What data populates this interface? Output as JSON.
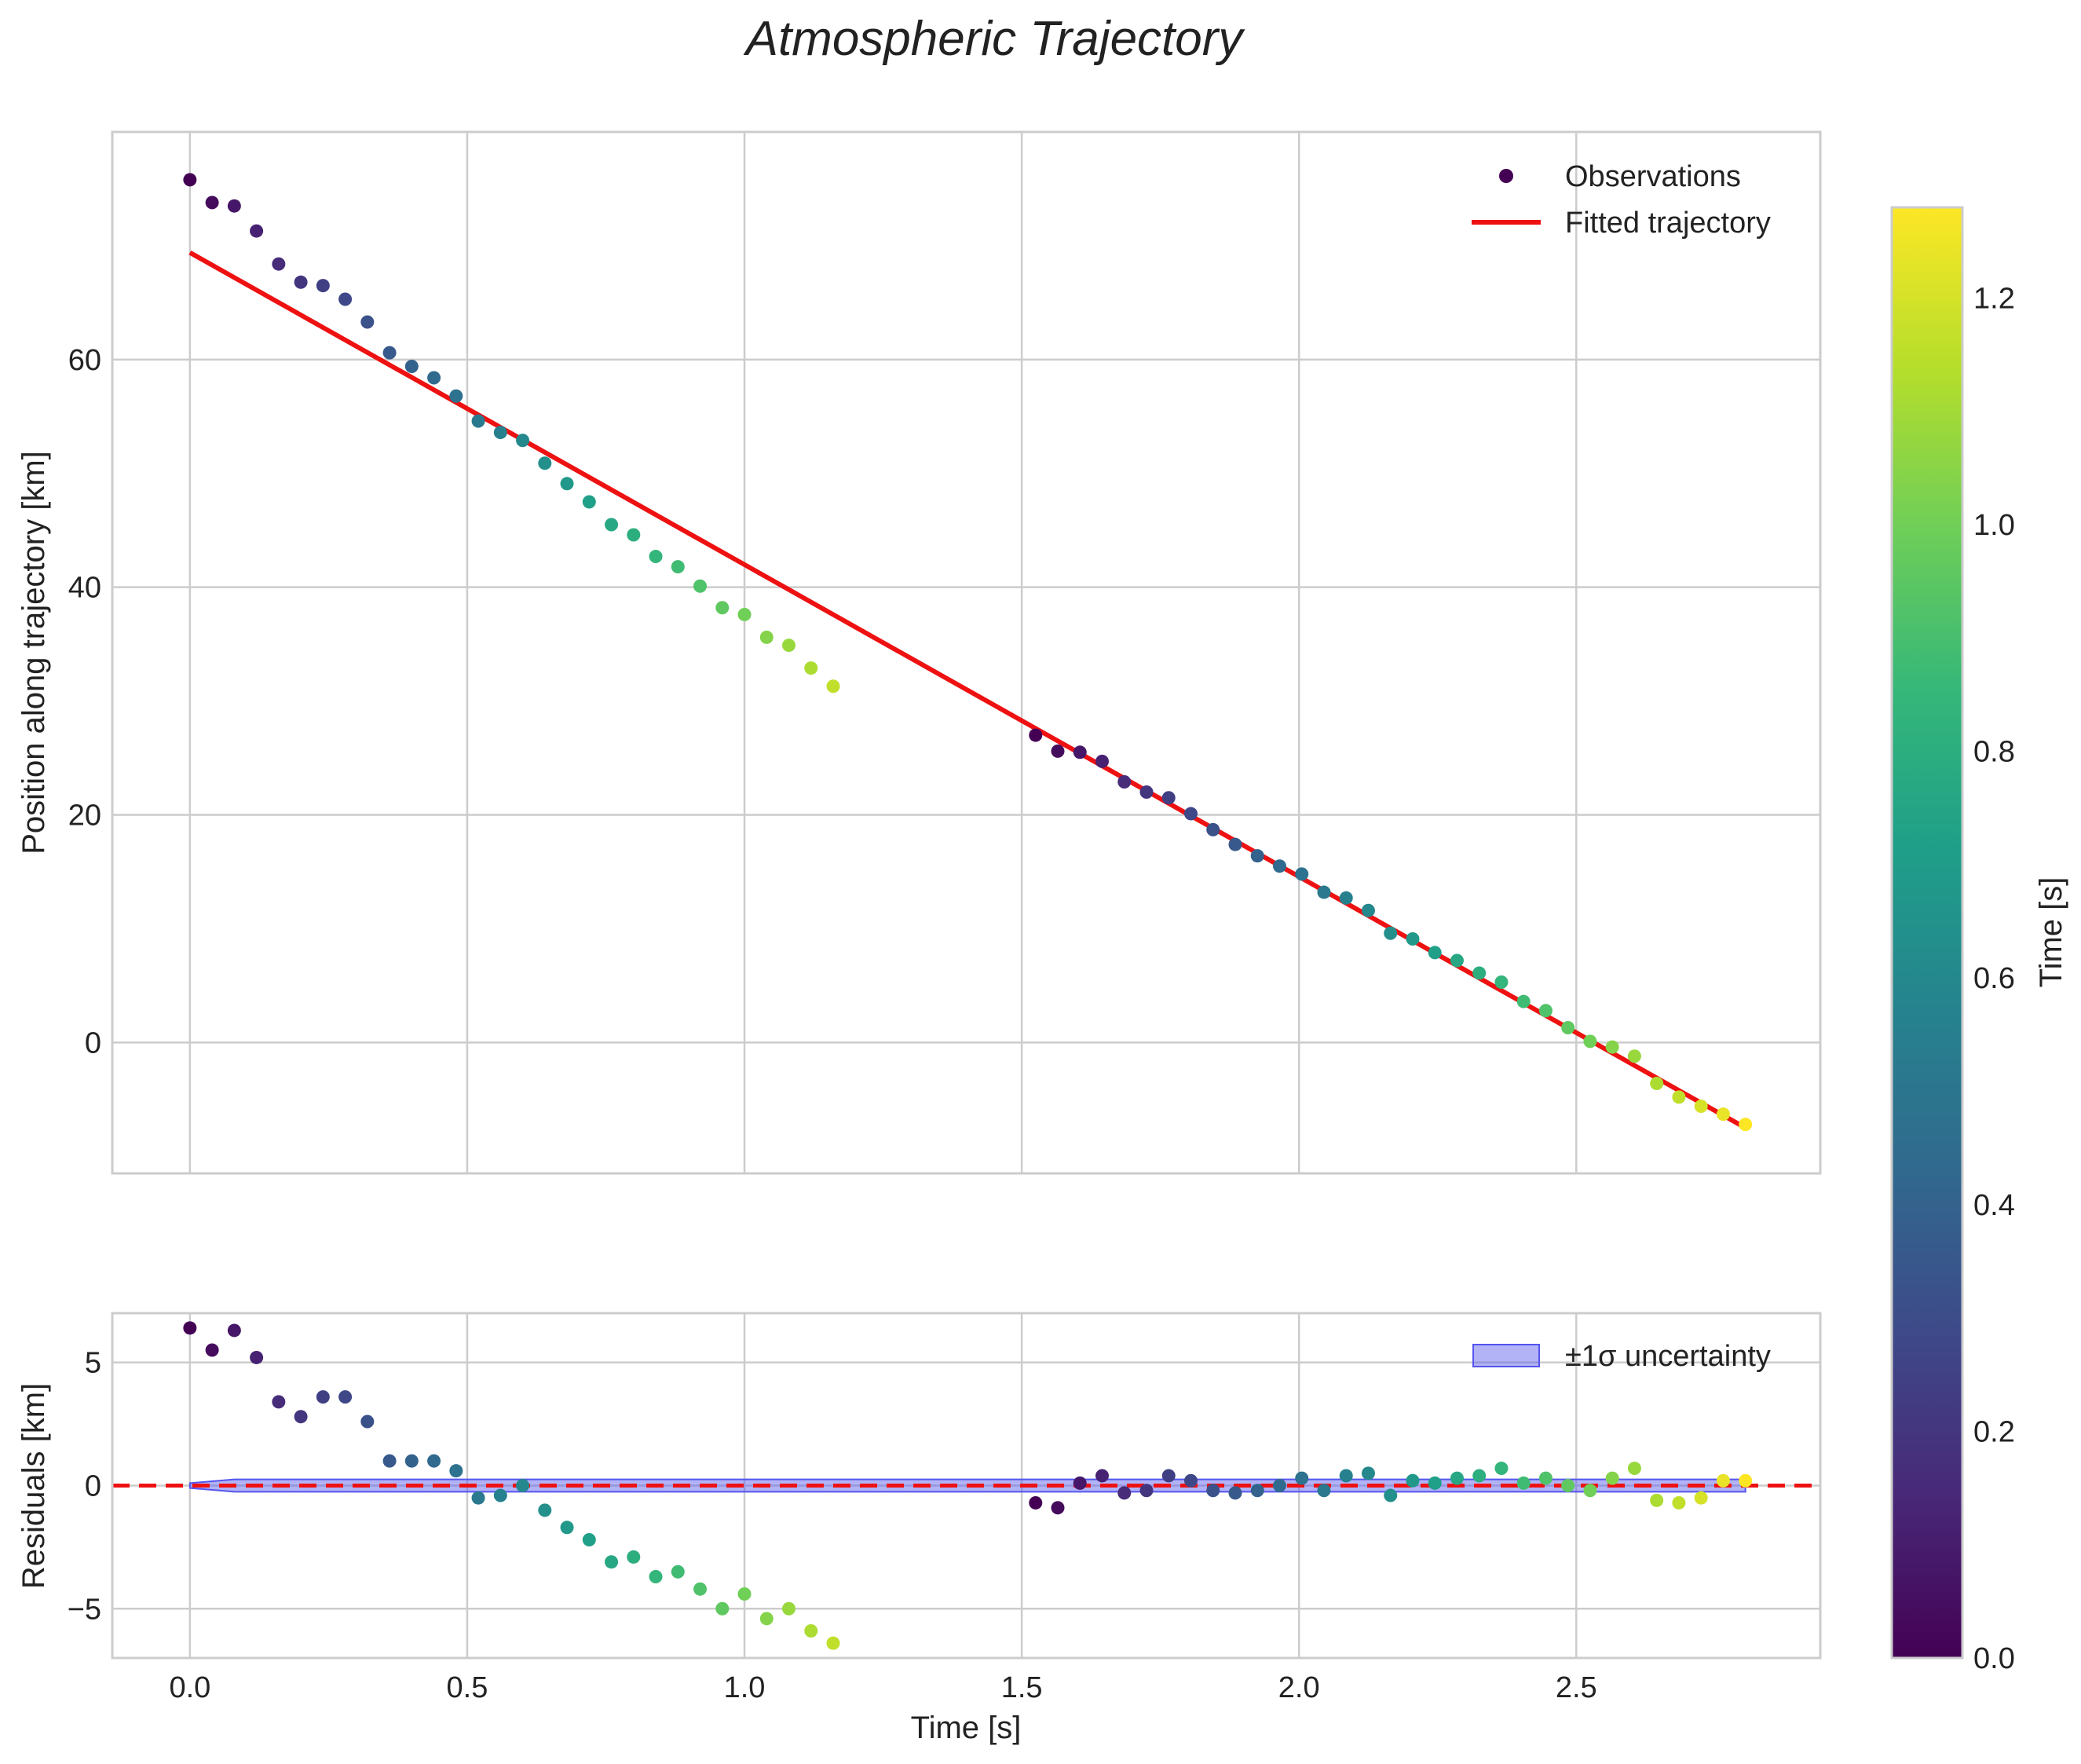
{
  "chart_data": [
    {
      "type": "scatter",
      "title": "Atmospheric Trajectory",
      "xlabel": "",
      "ylabel": "Position along trajectory [km]",
      "xlim": [
        -0.14,
        2.94
      ],
      "ylim": [
        -11.5,
        80
      ],
      "xticks": [
        0.0,
        0.5,
        1.0,
        1.5,
        2.0,
        2.5
      ],
      "xtick_labels": [
        "0.0",
        "0.5",
        "1.0",
        "1.5",
        "2.0",
        "2.5"
      ],
      "yticks": [
        0,
        20,
        40,
        60
      ],
      "ytick_labels": [
        "0",
        "20",
        "40",
        "60"
      ],
      "grid": true,
      "legend_position": "top-right",
      "series": [
        {
          "name": "Observations",
          "kind": "scatter",
          "x": [
            0.0,
            0.04,
            0.08,
            0.12,
            0.16,
            0.2,
            0.24,
            0.28,
            0.32,
            0.36,
            0.4,
            0.44,
            0.48,
            0.52,
            0.56,
            0.6,
            0.64,
            0.68,
            0.72,
            0.76,
            0.8,
            0.84,
            0.88,
            0.92,
            0.96,
            1.0,
            1.04,
            1.08,
            1.12,
            1.16,
            1.525,
            1.565,
            1.605,
            1.645,
            1.685,
            1.725,
            1.765,
            1.805,
            1.845,
            1.885,
            1.925,
            1.965,
            2.005,
            2.045,
            2.085,
            2.125,
            2.165,
            2.205,
            2.245,
            2.285,
            2.325,
            2.365,
            2.405,
            2.445,
            2.485,
            2.525,
            2.565,
            2.605,
            2.645,
            2.685,
            2.725,
            2.765,
            2.805
          ],
          "y": [
            75.8,
            73.8,
            73.5,
            71.3,
            68.4,
            66.8,
            66.5,
            65.3,
            63.3,
            60.6,
            59.4,
            58.4,
            56.8,
            54.6,
            53.6,
            52.9,
            50.9,
            49.1,
            47.5,
            45.5,
            44.6,
            42.7,
            41.8,
            40.1,
            38.2,
            37.6,
            35.6,
            34.9,
            32.9,
            31.3,
            27.0,
            25.6,
            25.5,
            24.7,
            22.9,
            22.0,
            21.5,
            20.1,
            18.7,
            17.4,
            16.4,
            15.5,
            14.8,
            13.2,
            12.7,
            11.6,
            9.6,
            9.1,
            7.9,
            7.2,
            6.1,
            5.3,
            3.6,
            2.8,
            1.3,
            0.1,
            -0.4,
            -1.2,
            -3.6,
            -4.8,
            -5.6,
            -6.3,
            -7.2
          ],
          "c": [
            0.0,
            0.04,
            0.08,
            0.12,
            0.16,
            0.2,
            0.24,
            0.28,
            0.32,
            0.36,
            0.4,
            0.44,
            0.48,
            0.52,
            0.56,
            0.6,
            0.64,
            0.68,
            0.72,
            0.76,
            0.8,
            0.84,
            0.88,
            0.92,
            0.96,
            1.0,
            1.04,
            1.08,
            1.12,
            1.16,
            0.0,
            0.04,
            0.08,
            0.12,
            0.16,
            0.2,
            0.24,
            0.28,
            0.32,
            0.36,
            0.4,
            0.44,
            0.48,
            0.52,
            0.56,
            0.6,
            0.64,
            0.68,
            0.72,
            0.76,
            0.8,
            0.84,
            0.88,
            0.92,
            0.96,
            1.0,
            1.04,
            1.08,
            1.12,
            1.16,
            1.2,
            1.24,
            1.28
          ]
        },
        {
          "name": "Fitted trajectory",
          "kind": "line",
          "color": "#ee1111",
          "x": [
            0.0,
            2.805
          ],
          "y": [
            69.4,
            -7.5
          ]
        }
      ]
    },
    {
      "type": "scatter",
      "title": "",
      "xlabel": "Time [s]",
      "ylabel": "Residuals [km]",
      "xlim": [
        -0.14,
        2.94
      ],
      "ylim": [
        -7.0,
        7.0
      ],
      "xticks": [
        0.0,
        0.5,
        1.0,
        1.5,
        2.0,
        2.5
      ],
      "xtick_labels": [
        "0.0",
        "0.5",
        "1.0",
        "1.5",
        "2.0",
        "2.5"
      ],
      "yticks": [
        -5,
        0,
        5
      ],
      "ytick_labels": [
        "−5",
        "0",
        "5"
      ],
      "grid": true,
      "legend_position": "top-right",
      "zero_line": {
        "y": 0,
        "color": "#ee1111",
        "style": "dashed"
      },
      "band": {
        "name": "±1σ uncertainty",
        "color": "#5555ee",
        "x": [
          0.0,
          0.08,
          2.805
        ],
        "upper": [
          0.1,
          0.25,
          0.25
        ],
        "lower": [
          -0.1,
          -0.25,
          -0.25
        ]
      },
      "series": [
        {
          "name": "Residuals",
          "kind": "scatter",
          "x": [
            0.0,
            0.04,
            0.08,
            0.12,
            0.16,
            0.2,
            0.24,
            0.28,
            0.32,
            0.36,
            0.4,
            0.44,
            0.48,
            0.52,
            0.56,
            0.6,
            0.64,
            0.68,
            0.72,
            0.76,
            0.8,
            0.84,
            0.88,
            0.92,
            0.96,
            1.0,
            1.04,
            1.08,
            1.12,
            1.16,
            1.525,
            1.565,
            1.605,
            1.645,
            1.685,
            1.725,
            1.765,
            1.805,
            1.845,
            1.885,
            1.925,
            1.965,
            2.005,
            2.045,
            2.085,
            2.125,
            2.165,
            2.205,
            2.245,
            2.285,
            2.325,
            2.365,
            2.405,
            2.445,
            2.485,
            2.525,
            2.565,
            2.605,
            2.645,
            2.685,
            2.725,
            2.765,
            2.805
          ],
          "y": [
            6.4,
            5.5,
            6.3,
            5.2,
            3.4,
            2.8,
            3.6,
            3.6,
            2.6,
            1.0,
            1.0,
            1.0,
            0.6,
            -0.5,
            -0.4,
            0.0,
            -1.0,
            -1.7,
            -2.2,
            -3.1,
            -2.9,
            -3.7,
            -3.5,
            -4.2,
            -5.0,
            -4.4,
            -5.4,
            -5.0,
            -5.9,
            -6.4,
            -0.7,
            -0.9,
            0.1,
            0.4,
            -0.3,
            -0.2,
            0.4,
            0.2,
            -0.2,
            -0.3,
            -0.2,
            0.0,
            0.3,
            -0.2,
            0.4,
            0.5,
            -0.4,
            0.2,
            0.1,
            0.3,
            0.4,
            0.7,
            0.1,
            0.3,
            0.0,
            -0.2,
            0.3,
            0.7,
            -0.6,
            -0.7,
            -0.5,
            0.2,
            0.2
          ],
          "c": [
            0.0,
            0.04,
            0.08,
            0.12,
            0.16,
            0.2,
            0.24,
            0.28,
            0.32,
            0.36,
            0.4,
            0.44,
            0.48,
            0.52,
            0.56,
            0.6,
            0.64,
            0.68,
            0.72,
            0.76,
            0.8,
            0.84,
            0.88,
            0.92,
            0.96,
            1.0,
            1.04,
            1.08,
            1.12,
            1.16,
            0.0,
            0.04,
            0.08,
            0.12,
            0.16,
            0.2,
            0.24,
            0.28,
            0.32,
            0.36,
            0.4,
            0.44,
            0.48,
            0.52,
            0.56,
            0.6,
            0.64,
            0.68,
            0.72,
            0.76,
            0.8,
            0.84,
            0.88,
            0.92,
            0.96,
            1.0,
            1.04,
            1.08,
            1.12,
            1.16,
            1.2,
            1.24,
            1.28
          ]
        }
      ]
    }
  ],
  "colorbar": {
    "label": "Time [s]",
    "range": [
      0.0,
      1.28
    ],
    "ticks": [
      0.0,
      0.2,
      0.4,
      0.6,
      0.8,
      1.0,
      1.2
    ],
    "tick_labels": [
      "0.0",
      "0.2",
      "0.4",
      "0.6",
      "0.8",
      "1.0",
      "1.2"
    ],
    "colormap": "viridis",
    "stops": [
      "#440154",
      "#482878",
      "#3e4989",
      "#31688e",
      "#26828e",
      "#1f9e89",
      "#35b779",
      "#6ece58",
      "#b5de2b",
      "#fde725"
    ]
  }
}
